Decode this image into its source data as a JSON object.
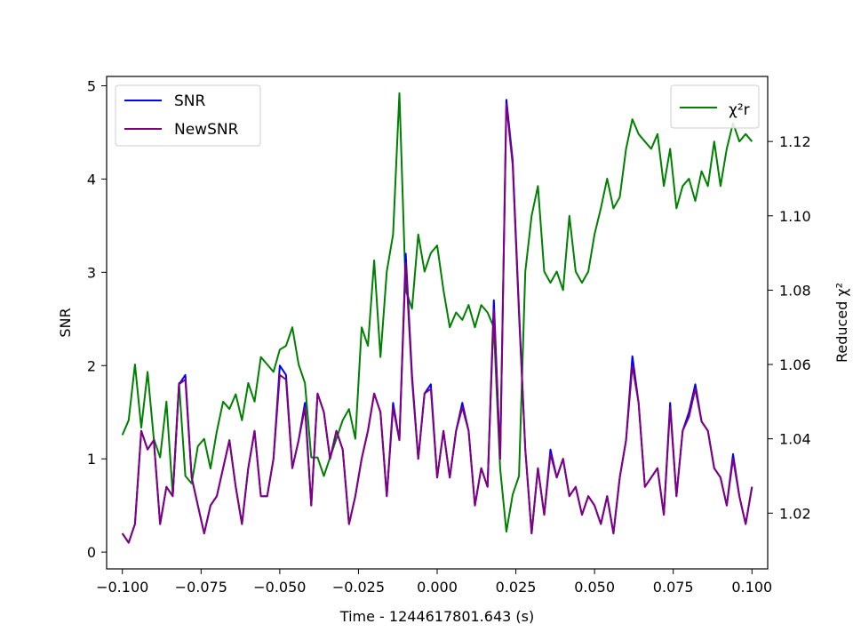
{
  "chart_data": {
    "type": "line",
    "xlabel": "Time - 1244617801.643 (s)",
    "ylabel_left": "SNR",
    "ylabel_right": "Reduced χ²",
    "xlim": [
      -0.105,
      0.105
    ],
    "ylim_left": [
      -0.18,
      5.1
    ],
    "ylim_right": [
      1.005,
      1.1375
    ],
    "x_ticks": [
      -0.1,
      -0.075,
      -0.05,
      -0.025,
      0.0,
      0.025,
      0.05,
      0.075,
      0.1
    ],
    "x_tick_labels": [
      "−0.100",
      "−0.075",
      "−0.050",
      "−0.025",
      "0.000",
      "0.025",
      "0.050",
      "0.075",
      "0.100"
    ],
    "y_left_ticks": [
      0,
      1,
      2,
      3,
      4,
      5
    ],
    "y_left_tick_labels": [
      "0",
      "1",
      "2",
      "3",
      "4",
      "5"
    ],
    "y_right_ticks": [
      1.02,
      1.04,
      1.06,
      1.08,
      1.1,
      1.12
    ],
    "y_right_tick_labels": [
      "1.02",
      "1.04",
      "1.06",
      "1.08",
      "1.10",
      "1.12"
    ],
    "legend_left": {
      "placement": "upper-left",
      "entries": [
        "SNR",
        "NewSNR"
      ]
    },
    "legend_right": {
      "placement": "upper-right",
      "entries": [
        "χ²r"
      ]
    },
    "series": [
      {
        "name": "SNR",
        "axis": "left",
        "color": "#0000ff",
        "x": [
          -0.1,
          -0.098,
          -0.096,
          -0.094,
          -0.092,
          -0.09,
          -0.088,
          -0.086,
          -0.084,
          -0.082,
          -0.08,
          -0.078,
          -0.076,
          -0.074,
          -0.072,
          -0.07,
          -0.068,
          -0.066,
          -0.064,
          -0.062,
          -0.06,
          -0.058,
          -0.056,
          -0.054,
          -0.052,
          -0.05,
          -0.048,
          -0.046,
          -0.044,
          -0.042,
          -0.04,
          -0.038,
          -0.036,
          -0.034,
          -0.032,
          -0.03,
          -0.028,
          -0.026,
          -0.024,
          -0.022,
          -0.02,
          -0.018,
          -0.016,
          -0.014,
          -0.012,
          -0.01,
          -0.008,
          -0.006,
          -0.004,
          -0.002,
          0.0,
          0.002,
          0.004,
          0.006,
          0.008,
          0.01,
          0.012,
          0.014,
          0.016,
          0.018,
          0.02,
          0.022,
          0.024,
          0.026,
          0.028,
          0.03,
          0.032,
          0.034,
          0.036,
          0.038,
          0.04,
          0.042,
          0.044,
          0.046,
          0.048,
          0.05,
          0.052,
          0.054,
          0.056,
          0.058,
          0.06,
          0.062,
          0.064,
          0.066,
          0.068,
          0.07,
          0.072,
          0.074,
          0.076,
          0.078,
          0.08,
          0.082,
          0.084,
          0.086,
          0.088,
          0.09,
          0.092,
          0.094,
          0.096,
          0.098,
          0.1
        ],
        "values": [
          0.2,
          0.1,
          0.3,
          1.3,
          1.1,
          1.2,
          0.3,
          0.7,
          0.6,
          1.8,
          1.9,
          0.8,
          0.5,
          0.2,
          0.5,
          0.6,
          0.9,
          1.2,
          0.7,
          0.3,
          0.9,
          1.3,
          0.6,
          0.6,
          1.0,
          2.0,
          1.9,
          0.9,
          1.2,
          1.6,
          0.5,
          1.7,
          1.5,
          1.0,
          1.3,
          1.1,
          0.3,
          0.6,
          1.0,
          1.3,
          1.7,
          1.5,
          0.6,
          1.6,
          1.2,
          3.2,
          1.9,
          1.0,
          1.7,
          1.8,
          0.8,
          1.3,
          0.8,
          1.3,
          1.6,
          1.3,
          0.5,
          0.9,
          0.7,
          2.7,
          1.0,
          4.85,
          4.2,
          2.6,
          1.1,
          0.2,
          0.9,
          0.4,
          1.1,
          0.8,
          1.0,
          0.6,
          0.7,
          0.4,
          0.6,
          0.5,
          0.3,
          0.6,
          0.2,
          0.8,
          1.2,
          2.1,
          1.6,
          0.7,
          0.8,
          0.9,
          0.4,
          1.6,
          0.6,
          1.3,
          1.5,
          1.8,
          1.4,
          1.3,
          0.9,
          0.8,
          0.5,
          1.05,
          0.6,
          0.3,
          0.7
        ]
      },
      {
        "name": "NewSNR",
        "axis": "left",
        "color": "#800080",
        "x": [
          -0.1,
          -0.098,
          -0.096,
          -0.094,
          -0.092,
          -0.09,
          -0.088,
          -0.086,
          -0.084,
          -0.082,
          -0.08,
          -0.078,
          -0.076,
          -0.074,
          -0.072,
          -0.07,
          -0.068,
          -0.066,
          -0.064,
          -0.062,
          -0.06,
          -0.058,
          -0.056,
          -0.054,
          -0.052,
          -0.05,
          -0.048,
          -0.046,
          -0.044,
          -0.042,
          -0.04,
          -0.038,
          -0.036,
          -0.034,
          -0.032,
          -0.03,
          -0.028,
          -0.026,
          -0.024,
          -0.022,
          -0.02,
          -0.018,
          -0.016,
          -0.014,
          -0.012,
          -0.01,
          -0.008,
          -0.006,
          -0.004,
          -0.002,
          0.0,
          0.002,
          0.004,
          0.006,
          0.008,
          0.01,
          0.012,
          0.014,
          0.016,
          0.018,
          0.02,
          0.022,
          0.024,
          0.026,
          0.028,
          0.03,
          0.032,
          0.034,
          0.036,
          0.038,
          0.04,
          0.042,
          0.044,
          0.046,
          0.048,
          0.05,
          0.052,
          0.054,
          0.056,
          0.058,
          0.06,
          0.062,
          0.064,
          0.066,
          0.068,
          0.07,
          0.072,
          0.074,
          0.076,
          0.078,
          0.08,
          0.082,
          0.084,
          0.086,
          0.088,
          0.09,
          0.092,
          0.094,
          0.096,
          0.098,
          0.1
        ],
        "values": [
          0.2,
          0.1,
          0.3,
          1.3,
          1.1,
          1.2,
          0.3,
          0.7,
          0.6,
          1.8,
          1.85,
          0.8,
          0.5,
          0.2,
          0.5,
          0.6,
          0.9,
          1.2,
          0.7,
          0.3,
          0.9,
          1.3,
          0.6,
          0.6,
          1.0,
          1.9,
          1.85,
          0.9,
          1.2,
          1.55,
          0.5,
          1.7,
          1.5,
          1.0,
          1.3,
          1.1,
          0.3,
          0.6,
          1.0,
          1.3,
          1.7,
          1.5,
          0.6,
          1.55,
          1.2,
          3.1,
          1.85,
          1.0,
          1.7,
          1.75,
          0.8,
          1.3,
          0.8,
          1.3,
          1.55,
          1.3,
          0.5,
          0.9,
          0.7,
          2.6,
          1.0,
          4.8,
          4.15,
          2.55,
          1.1,
          0.2,
          0.9,
          0.4,
          1.05,
          0.8,
          1.0,
          0.6,
          0.7,
          0.4,
          0.6,
          0.5,
          0.3,
          0.6,
          0.2,
          0.8,
          1.2,
          2.0,
          1.6,
          0.7,
          0.8,
          0.9,
          0.4,
          1.55,
          0.6,
          1.3,
          1.45,
          1.75,
          1.4,
          1.3,
          0.9,
          0.8,
          0.5,
          1.0,
          0.6,
          0.3,
          0.7
        ]
      },
      {
        "name": "χ²r",
        "axis": "right",
        "color": "#008000",
        "x": [
          -0.1,
          -0.098,
          -0.096,
          -0.094,
          -0.092,
          -0.09,
          -0.088,
          -0.086,
          -0.084,
          -0.082,
          -0.08,
          -0.078,
          -0.076,
          -0.074,
          -0.072,
          -0.07,
          -0.068,
          -0.066,
          -0.064,
          -0.062,
          -0.06,
          -0.058,
          -0.056,
          -0.054,
          -0.052,
          -0.05,
          -0.048,
          -0.046,
          -0.044,
          -0.042,
          -0.04,
          -0.038,
          -0.036,
          -0.034,
          -0.032,
          -0.03,
          -0.028,
          -0.026,
          -0.024,
          -0.022,
          -0.02,
          -0.018,
          -0.016,
          -0.014,
          -0.012,
          -0.01,
          -0.008,
          -0.006,
          -0.004,
          -0.002,
          0.0,
          0.002,
          0.004,
          0.006,
          0.008,
          0.01,
          0.012,
          0.014,
          0.016,
          0.018,
          0.02,
          0.022,
          0.024,
          0.026,
          0.028,
          0.03,
          0.032,
          0.034,
          0.036,
          0.038,
          0.04,
          0.042,
          0.044,
          0.046,
          0.048,
          0.05,
          0.052,
          0.054,
          0.056,
          0.058,
          0.06,
          0.062,
          0.064,
          0.066,
          0.068,
          0.07,
          0.072,
          0.074,
          0.076,
          0.078,
          0.08,
          0.082,
          0.084,
          0.086,
          0.088,
          0.09,
          0.092,
          0.094,
          0.096,
          0.098,
          0.1
        ],
        "values": [
          1.041,
          1.045,
          1.06,
          1.043,
          1.058,
          1.04,
          1.035,
          1.05,
          1.025,
          1.055,
          1.03,
          1.028,
          1.038,
          1.04,
          1.032,
          1.042,
          1.05,
          1.048,
          1.052,
          1.045,
          1.055,
          1.05,
          1.062,
          1.06,
          1.058,
          1.064,
          1.065,
          1.07,
          1.06,
          1.055,
          1.035,
          1.035,
          1.03,
          1.035,
          1.04,
          1.045,
          1.048,
          1.04,
          1.07,
          1.065,
          1.088,
          1.062,
          1.085,
          1.095,
          1.133,
          1.08,
          1.075,
          1.095,
          1.085,
          1.09,
          1.092,
          1.08,
          1.07,
          1.074,
          1.072,
          1.076,
          1.07,
          1.076,
          1.074,
          1.07,
          1.032,
          1.015,
          1.025,
          1.03,
          1.085,
          1.1,
          1.108,
          1.085,
          1.082,
          1.085,
          1.08,
          1.1,
          1.085,
          1.082,
          1.085,
          1.095,
          1.102,
          1.11,
          1.102,
          1.105,
          1.118,
          1.126,
          1.122,
          1.12,
          1.118,
          1.122,
          1.108,
          1.118,
          1.102,
          1.108,
          1.11,
          1.104,
          1.112,
          1.108,
          1.12,
          1.108,
          1.118,
          1.125,
          1.12,
          1.122,
          1.12
        ]
      }
    ]
  }
}
